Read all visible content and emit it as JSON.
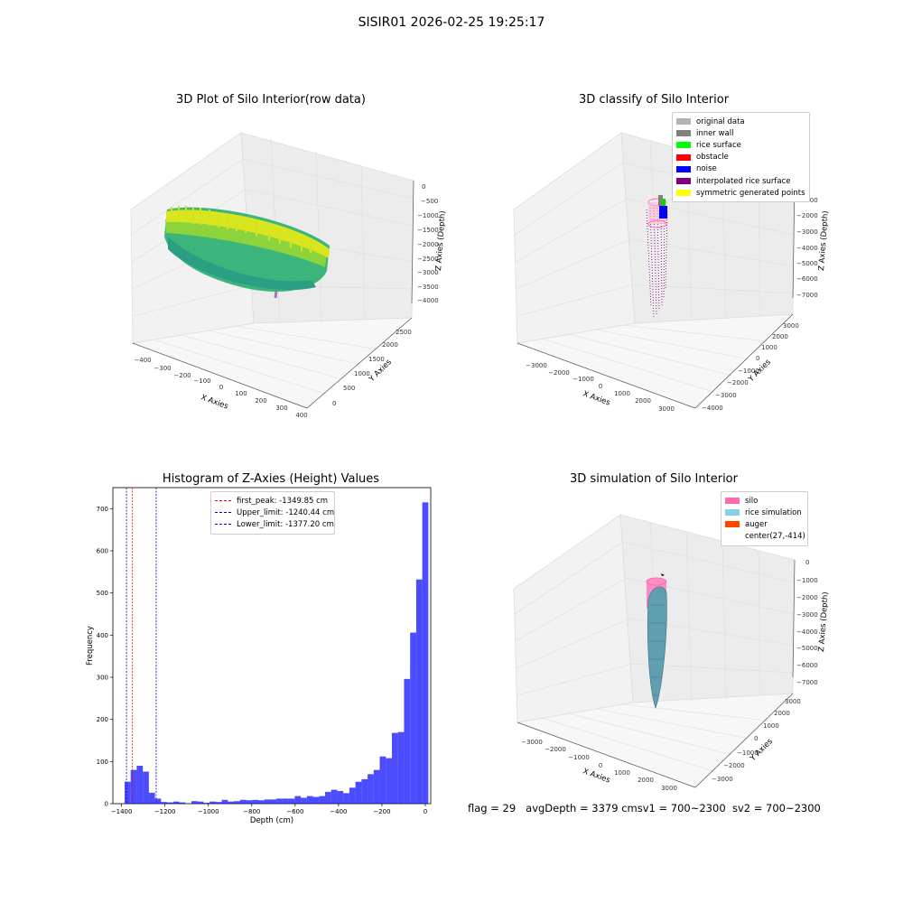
{
  "figure": {
    "suptitle": "SISIR01 2026-02-25 19:25:17",
    "status": {
      "flag": "flag = 29",
      "avg_depth": "avgDepth = 3379 cm",
      "sv1": "sv1 = 700~2300",
      "sv2": "sv2 = 700~2300"
    }
  },
  "panels": {
    "p1": {
      "title": "3D Plot of Silo Interior(row data)",
      "xlabel": "X Axies",
      "ylabel": "Y Axies",
      "zlabel": "Z Axies (Depth)",
      "xticks": [
        "−400",
        "−300",
        "−200",
        "−100",
        "0",
        "100",
        "200",
        "300",
        "400"
      ],
      "yticks": [
        "0",
        "500",
        "1000",
        "1500",
        "2000",
        "2500"
      ],
      "zticks": [
        "0",
        "−500",
        "−1000",
        "−1500",
        "−2000",
        "−2500",
        "−3000",
        "−3500",
        "−4000"
      ]
    },
    "p2": {
      "title": "3D classify of Silo Interior",
      "xlabel": "X Axies",
      "ylabel": "Y Axies",
      "zlabel": "Z Axies (Depth)",
      "xticks": [
        "−3000",
        "−2000",
        "−1000",
        "0",
        "1000",
        "2000",
        "3000"
      ],
      "yticks": [
        "−4000",
        "−3000",
        "−2000",
        "−1000",
        "0",
        "1000",
        "2000",
        "3000"
      ],
      "zticks": [
        "0",
        "−1000",
        "−2000",
        "−3000",
        "−4000",
        "−5000",
        "−6000",
        "−7000"
      ],
      "legend": [
        {
          "label": "original data",
          "color": "#b3b3b3"
        },
        {
          "label": "inner wall",
          "color": "#808080"
        },
        {
          "label": "rice surface",
          "color": "#00ff00"
        },
        {
          "label": "obstacle",
          "color": "#ff0000"
        },
        {
          "label": "noise",
          "color": "#0000ff"
        },
        {
          "label": "interpolated rice surface",
          "color": "#800080"
        },
        {
          "label": "symmetric generated points",
          "color": "#ffff00"
        }
      ]
    },
    "p4": {
      "title": "3D simulation of Silo Interior",
      "xlabel": "X Axies",
      "ylabel": "Y Axies",
      "zlabel": "Z Axies (Depth)",
      "xticks": [
        "−3000",
        "−2000",
        "−1000",
        "0",
        "1000",
        "2000",
        "3000"
      ],
      "yticks": [
        "−3000",
        "−2000",
        "−1000",
        "0",
        "1000",
        "2000",
        "3000"
      ],
      "zticks": [
        "0",
        "−1000",
        "−2000",
        "−3000",
        "−4000",
        "−5000",
        "−6000",
        "−7000"
      ],
      "legend": [
        {
          "label": "silo",
          "color": "#ff69b4"
        },
        {
          "label": "rice simulation",
          "color": "#87ceeb"
        },
        {
          "label": "auger",
          "color": "#ff4500"
        },
        {
          "label": "center(27,-414)",
          "color": ""
        }
      ]
    }
  },
  "chart_data": [
    {
      "type": "bar",
      "title": "Histogram of Z-Axies (Height) Values",
      "xlabel": "Depth (cm)",
      "ylabel": "Frequency",
      "xlim": [
        -1440,
        25
      ],
      "ylim": [
        0,
        750
      ],
      "xticks": [
        -1400,
        -1200,
        -1000,
        -800,
        -600,
        -400,
        -200,
        0
      ],
      "xtick_labels": [
        "−1400",
        "−1200",
        "−1000",
        "−800",
        "−600",
        "−400",
        "−200",
        "0"
      ],
      "yticks": [
        0,
        100,
        200,
        300,
        400,
        500,
        600,
        700
      ],
      "bar_color": "#0000ff",
      "bar_alpha": 0.7,
      "bin_width": 28,
      "bins": [
        {
          "x0": -1386,
          "v": 52
        },
        {
          "x0": -1358,
          "v": 80
        },
        {
          "x0": -1330,
          "v": 90
        },
        {
          "x0": -1302,
          "v": 76
        },
        {
          "x0": -1274,
          "v": 26
        },
        {
          "x0": -1246,
          "v": 12
        },
        {
          "x0": -1218,
          "v": 4
        },
        {
          "x0": -1190,
          "v": 3
        },
        {
          "x0": -1162,
          "v": 5
        },
        {
          "x0": -1134,
          "v": 3
        },
        {
          "x0": -1106,
          "v": 0
        },
        {
          "x0": -1078,
          "v": 6
        },
        {
          "x0": -1050,
          "v": 5
        },
        {
          "x0": -1022,
          "v": 2
        },
        {
          "x0": -994,
          "v": 5
        },
        {
          "x0": -966,
          "v": 4
        },
        {
          "x0": -938,
          "v": 9
        },
        {
          "x0": -910,
          "v": 5
        },
        {
          "x0": -882,
          "v": 6
        },
        {
          "x0": -854,
          "v": 9
        },
        {
          "x0": -826,
          "v": 8
        },
        {
          "x0": -798,
          "v": 9
        },
        {
          "x0": -770,
          "v": 8
        },
        {
          "x0": -742,
          "v": 10
        },
        {
          "x0": -714,
          "v": 10
        },
        {
          "x0": -686,
          "v": 12
        },
        {
          "x0": -658,
          "v": 12
        },
        {
          "x0": -630,
          "v": 12
        },
        {
          "x0": -602,
          "v": 18
        },
        {
          "x0": -574,
          "v": 14
        },
        {
          "x0": -546,
          "v": 18
        },
        {
          "x0": -518,
          "v": 16
        },
        {
          "x0": -490,
          "v": 18
        },
        {
          "x0": -462,
          "v": 28
        },
        {
          "x0": -434,
          "v": 33
        },
        {
          "x0": -406,
          "v": 30
        },
        {
          "x0": -378,
          "v": 25
        },
        {
          "x0": -350,
          "v": 38
        },
        {
          "x0": -322,
          "v": 52
        },
        {
          "x0": -294,
          "v": 58
        },
        {
          "x0": -266,
          "v": 70
        },
        {
          "x0": -238,
          "v": 80
        },
        {
          "x0": -210,
          "v": 112
        },
        {
          "x0": -182,
          "v": 108
        },
        {
          "x0": -154,
          "v": 168
        },
        {
          "x0": -126,
          "v": 170
        },
        {
          "x0": -98,
          "v": 296
        },
        {
          "x0": -70,
          "v": 406
        },
        {
          "x0": -42,
          "v": 532
        },
        {
          "x0": -14,
          "v": 715
        }
      ],
      "vlines": [
        {
          "label": "first_peak: -1349.85 cm",
          "value": -1349.85,
          "color": "#ff0000"
        },
        {
          "label": "Upper_limit: -1240.44 cm",
          "value": -1240.44,
          "color": "#0000cd"
        },
        {
          "label": "Lower_limit: -1377.20 cm",
          "value": -1377.2,
          "color": "#0000cd"
        }
      ]
    }
  ]
}
